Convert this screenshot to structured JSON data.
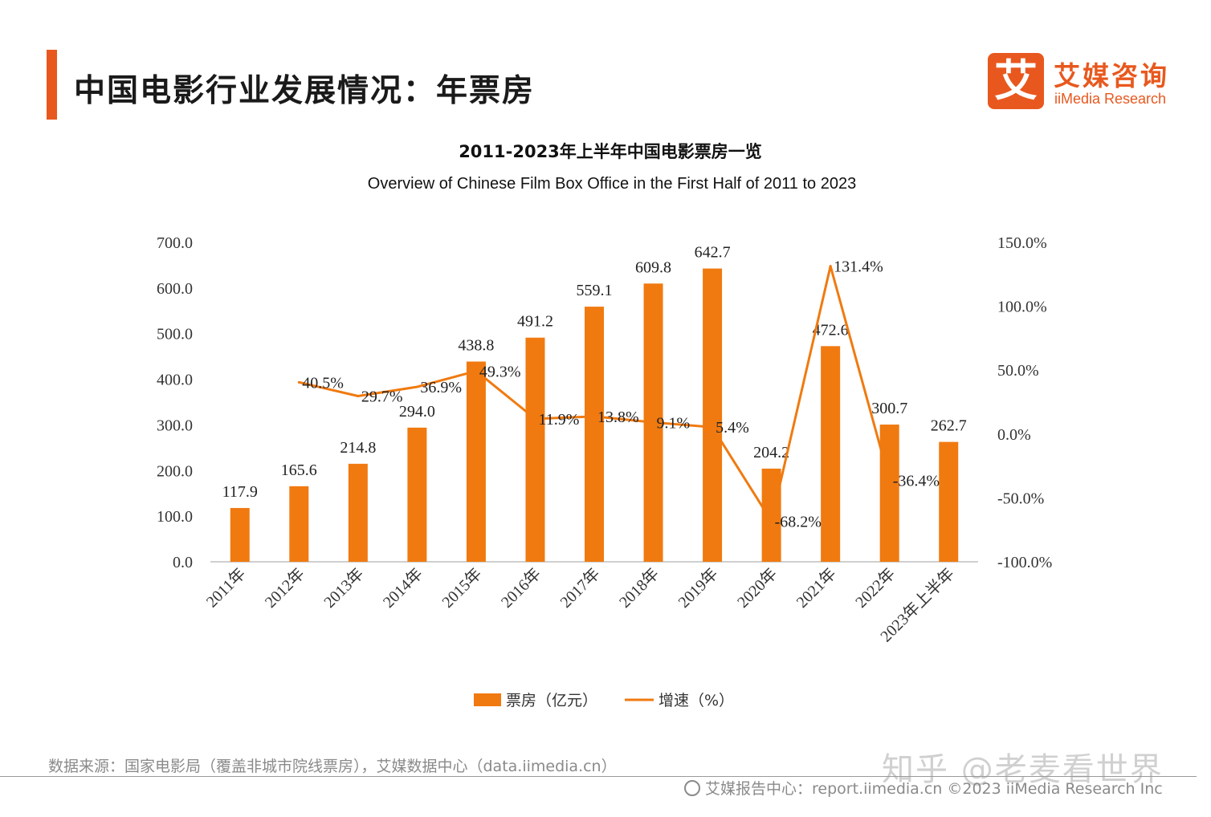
{
  "header": {
    "title": "中国电影行业发展情况：年票房",
    "logo_mark": "艾",
    "logo_cn": "艾媒咨询",
    "logo_en": "iiMedia Research"
  },
  "colors": {
    "accent": "#e8581e",
    "bar": "#f07a10",
    "line": "#f07a10"
  },
  "chart_data": {
    "type": "bar",
    "title": "2011-2023年上半年中国电影票房一览",
    "subtitle": "Overview of Chinese Film Box Office in the First Half of 2011 to 2023",
    "categories": [
      "2011年",
      "2012年",
      "2013年",
      "2014年",
      "2015年",
      "2016年",
      "2017年",
      "2018年",
      "2019年",
      "2020年",
      "2021年",
      "2022年",
      "2023年上半年"
    ],
    "series": [
      {
        "name": "票房（亿元）",
        "type": "bar",
        "axis": "left",
        "values": [
          117.9,
          165.6,
          214.8,
          294.0,
          438.8,
          491.2,
          559.1,
          609.8,
          642.7,
          204.2,
          472.6,
          300.7,
          262.7
        ],
        "labels": [
          "117.9",
          "165.6",
          "214.8",
          "294.0",
          "438.8",
          "491.2",
          "559.1",
          "609.8",
          "642.7",
          "204.2",
          "472.6",
          "300.7",
          "262.7"
        ]
      },
      {
        "name": "增速（%）",
        "type": "line",
        "axis": "right",
        "values": [
          null,
          40.5,
          29.7,
          36.9,
          49.3,
          11.9,
          13.8,
          9.1,
          5.4,
          -68.2,
          131.4,
          -36.4,
          null
        ],
        "labels": [
          "",
          "40.5%",
          "29.7%",
          "36.9%",
          "49.3%",
          "11.9%",
          "13.8%",
          "9.1%",
          "5.4%",
          "-68.2%",
          "131.4%",
          "-36.4%",
          ""
        ]
      }
    ],
    "y_left": {
      "min": 0,
      "max": 700,
      "ticks": [
        "0.0",
        "100.0",
        "200.0",
        "300.0",
        "400.0",
        "500.0",
        "600.0",
        "700.0"
      ]
    },
    "y_right": {
      "min": -100,
      "max": 150,
      "ticks": [
        "-100.0%",
        "-50.0%",
        "0.0%",
        "50.0%",
        "100.0%",
        "150.0%"
      ]
    },
    "grid": false,
    "legend_position": "bottom"
  },
  "footer": {
    "source": "数据来源：国家电影局（覆盖非城市院线票房），艾媒数据中心（data.iimedia.cn）",
    "watermark": "知乎 @老麦看世界",
    "copyright": "艾媒报告中心：report.iimedia.cn  ©2023  iiMedia Research  Inc"
  }
}
